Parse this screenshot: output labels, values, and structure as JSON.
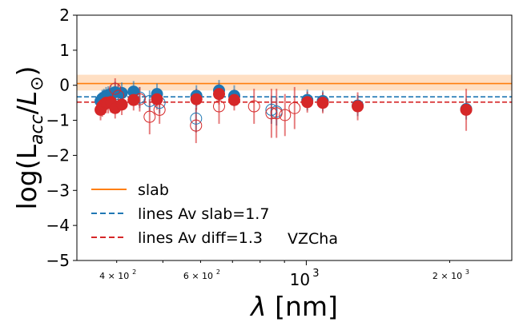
{
  "chart_data": {
    "type": "scatter",
    "xscale": "log",
    "xlim": [
      330,
      2700
    ],
    "ylim": [
      -5,
      2
    ],
    "xlabel": "λ [nm]",
    "ylabel": "log(L_acc/L_⊙)",
    "y_ticks": [
      2,
      1,
      0,
      -1,
      -2,
      -3,
      -4,
      -5
    ],
    "y_tick_labels": [
      "2",
      "1",
      "0",
      "−1",
      "−2",
      "−3",
      "−4",
      "−5"
    ],
    "x_ticks_major": [
      {
        "value": 1000,
        "label": "10",
        "exp": "3"
      }
    ],
    "x_ticks_minor_labeled": [
      {
        "value": 400,
        "label": "4 × 10",
        "exp": "2"
      },
      {
        "value": 600,
        "label": "6 × 10",
        "exp": "2"
      },
      {
        "value": 2000,
        "label": "2 × 10",
        "exp": "3"
      }
    ],
    "annotation": "VZCha",
    "legend": {
      "placement": "lower-left",
      "entries": [
        {
          "label": "slab",
          "color": "#ff7f0e",
          "style": "solid"
        },
        {
          "label": "lines Av slab=1.7",
          "color": "#1f77b4",
          "style": "dashed"
        },
        {
          "label": "lines Av diff=1.3",
          "color": "#d62728",
          "style": "dashed"
        }
      ]
    },
    "slab": {
      "value": 0.05,
      "band": [
        -0.15,
        0.3
      ],
      "color": "#ff7f0e"
    },
    "mean_slab": {
      "value": -0.33,
      "color": "#1f77b4"
    },
    "mean_diff": {
      "value": -0.48,
      "color": "#d62728"
    },
    "series": [
      {
        "style": "blue-filled",
        "color": "#1f77b4",
        "points": [
          {
            "x": 370,
            "y": -0.45,
            "err": 0.25
          },
          {
            "x": 373,
            "y": -0.38,
            "err": 0.25
          },
          {
            "x": 376,
            "y": -0.35,
            "err": 0.25
          },
          {
            "x": 380,
            "y": -0.3,
            "err": 0.25
          },
          {
            "x": 384,
            "y": -0.28,
            "err": 0.25
          },
          {
            "x": 389,
            "y": -0.25,
            "err": 0.25
          },
          {
            "x": 397,
            "y": -0.2,
            "err": 0.3
          },
          {
            "x": 410,
            "y": -0.22,
            "err": 0.3
          },
          {
            "x": 434,
            "y": -0.18,
            "err": 0.3
          },
          {
            "x": 486,
            "y": -0.25,
            "err": 0.3
          },
          {
            "x": 588,
            "y": -0.3,
            "err": 0.3
          },
          {
            "x": 656,
            "y": -0.15,
            "err": 0.3
          },
          {
            "x": 706,
            "y": -0.3,
            "err": 0.3
          },
          {
            "x": 1005,
            "y": -0.42,
            "err": 0.3
          },
          {
            "x": 1083,
            "y": -0.45,
            "err": 0.3
          },
          {
            "x": 1282,
            "y": -0.58,
            "err": 0.3
          },
          {
            "x": 2166,
            "y": -0.68,
            "err": 0.3
          }
        ]
      },
      {
        "style": "blue-open",
        "color": "#1f77b4",
        "points": [
          {
            "x": 403,
            "y": -0.25,
            "err": 0.3
          },
          {
            "x": 447,
            "y": -0.35,
            "err": 0.3
          },
          {
            "x": 469,
            "y": -0.45,
            "err": 0.3
          },
          {
            "x": 492,
            "y": -0.5,
            "err": 0.3
          },
          {
            "x": 587,
            "y": -0.95,
            "err": 0.4
          },
          {
            "x": 845,
            "y": -0.7,
            "err": 0.4
          },
          {
            "x": 866,
            "y": -0.75,
            "err": 0.4
          }
        ]
      },
      {
        "style": "red-filled",
        "color": "#d62728",
        "points": [
          {
            "x": 370,
            "y": -0.7,
            "err": 0.3
          },
          {
            "x": 373,
            "y": -0.6,
            "err": 0.3
          },
          {
            "x": 376,
            "y": -0.55,
            "err": 0.3
          },
          {
            "x": 380,
            "y": -0.5,
            "err": 0.3
          },
          {
            "x": 384,
            "y": -0.5,
            "err": 0.3
          },
          {
            "x": 389,
            "y": -0.48,
            "err": 0.3
          },
          {
            "x": 397,
            "y": -0.65,
            "err": 0.3
          },
          {
            "x": 410,
            "y": -0.55,
            "err": 0.3
          },
          {
            "x": 434,
            "y": -0.42,
            "err": 0.3
          },
          {
            "x": 486,
            "y": -0.4,
            "err": 0.3
          },
          {
            "x": 588,
            "y": -0.4,
            "err": 0.3
          },
          {
            "x": 656,
            "y": -0.25,
            "err": 0.3
          },
          {
            "x": 706,
            "y": -0.42,
            "err": 0.3
          },
          {
            "x": 1005,
            "y": -0.48,
            "err": 0.3
          },
          {
            "x": 1083,
            "y": -0.5,
            "err": 0.3
          },
          {
            "x": 1282,
            "y": -0.6,
            "err": 0.4
          },
          {
            "x": 2166,
            "y": -0.7,
            "err": 0.6
          }
        ]
      },
      {
        "style": "red-open",
        "color": "#d62728",
        "points": [
          {
            "x": 397,
            "y": -0.1,
            "err": 0.3
          },
          {
            "x": 403,
            "y": -0.3,
            "err": 0.35
          },
          {
            "x": 447,
            "y": -0.4,
            "err": 0.35
          },
          {
            "x": 469,
            "y": -0.9,
            "err": 0.5
          },
          {
            "x": 492,
            "y": -0.7,
            "err": 0.4
          },
          {
            "x": 587,
            "y": -1.15,
            "err": 0.5
          },
          {
            "x": 656,
            "y": -0.6,
            "err": 0.5
          },
          {
            "x": 777,
            "y": -0.6,
            "err": 0.5
          },
          {
            "x": 845,
            "y": -0.8,
            "err": 0.7
          },
          {
            "x": 866,
            "y": -0.8,
            "err": 0.7
          },
          {
            "x": 902,
            "y": -0.85,
            "err": 0.6
          },
          {
            "x": 945,
            "y": -0.65,
            "err": 0.6
          }
        ]
      }
    ]
  }
}
